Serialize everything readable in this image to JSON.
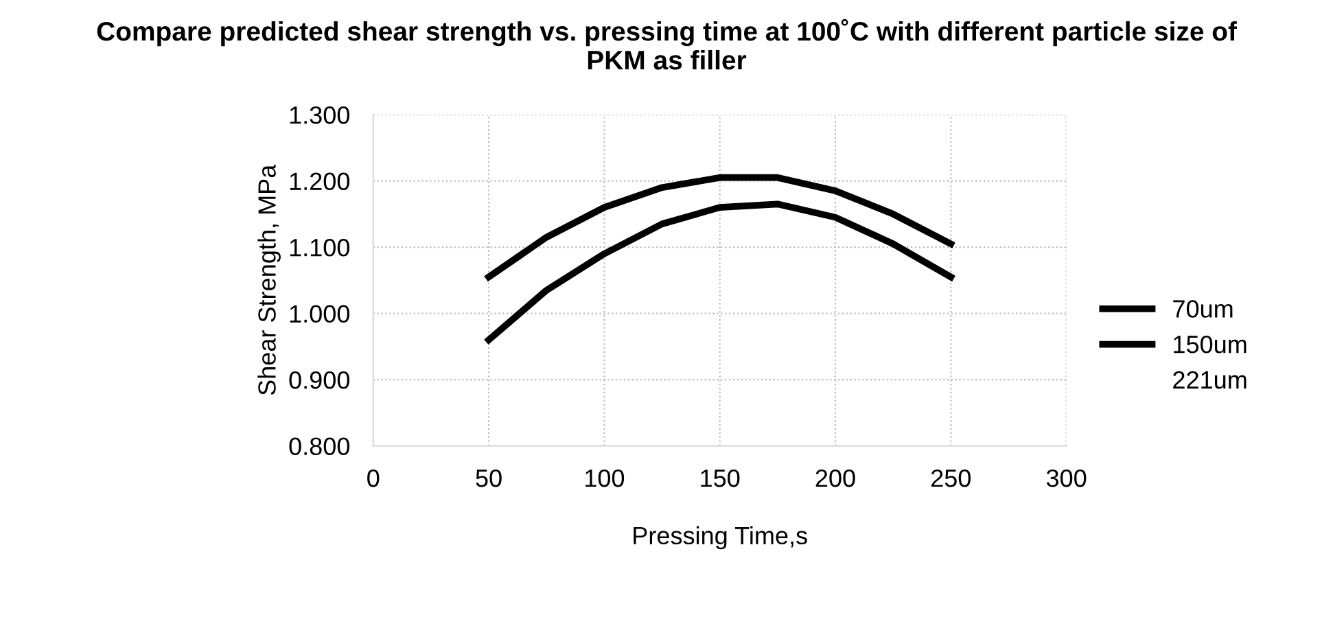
{
  "chart_data": {
    "type": "line",
    "title": "Compare predicted shear strength vs. pressing time at 100˚C with different particle size of PKM as filler",
    "xlabel": "Pressing Time,s",
    "ylabel": "Shear Strength, MPa",
    "x": [
      50,
      75,
      100,
      125,
      150,
      175,
      200,
      225,
      250
    ],
    "series": [
      {
        "name": "70um",
        "color": "#000000",
        "values": [
          1.055,
          1.115,
          1.16,
          1.19,
          1.205,
          1.205,
          1.185,
          1.15,
          1.105
        ]
      },
      {
        "name": "150um",
        "color": "#000000",
        "values": [
          0.96,
          1.035,
          1.09,
          1.135,
          1.16,
          1.165,
          1.145,
          1.105,
          1.055
        ]
      },
      {
        "name": "221um",
        "values": [
          null,
          null,
          null,
          null,
          null,
          null,
          null,
          null,
          null
        ]
      }
    ],
    "xlim": [
      0,
      300
    ],
    "xticks": [
      0,
      50,
      100,
      150,
      200,
      250,
      300
    ],
    "ylim": [
      0.8,
      1.3
    ],
    "yticks": [
      {
        "value": 0.8,
        "label": "0.800"
      },
      {
        "value": 0.9,
        "label": "0.900"
      },
      {
        "value": 1.0,
        "label": "1.000"
      },
      {
        "value": 1.1,
        "label": "1.100"
      },
      {
        "value": 1.2,
        "label": "1.200"
      },
      {
        "value": 1.3,
        "label": "1.300"
      }
    ],
    "grid": true,
    "legend": "right",
    "marker": "none",
    "line_style": "solid"
  }
}
